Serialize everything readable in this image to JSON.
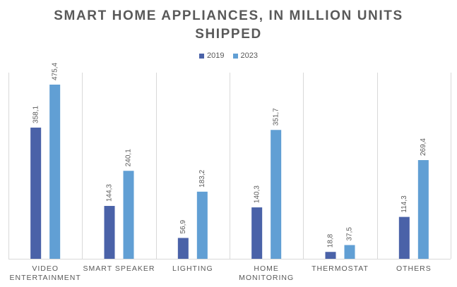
{
  "chart_data": {
    "type": "bar",
    "title_lines": [
      "SMART HOME APPLIANCES, IN MILLION UNITS",
      "SHIPPED"
    ],
    "categories": [
      [
        "VIDEO",
        "ENTERTAINMENT"
      ],
      [
        "SMART SPEAKER"
      ],
      [
        "LIGHTING"
      ],
      [
        "HOME",
        "MONITORING"
      ],
      [
        "THERMOSTAT"
      ],
      [
        "OTHERS"
      ]
    ],
    "series": [
      {
        "name": "2019",
        "color": "#4a62a8",
        "values": [
          358.1,
          144.3,
          56.9,
          140.3,
          18.8,
          114.3
        ],
        "labels": [
          "358,1",
          "144,3",
          "56,9",
          "140,3",
          "18,8",
          "114,3"
        ]
      },
      {
        "name": "2023",
        "color": "#619fd4",
        "values": [
          475.4,
          240.1,
          183.2,
          351.7,
          37.5,
          269.4
        ],
        "labels": [
          "475,4",
          "240,1",
          "183,2",
          "351,7",
          "37,5",
          "269,4"
        ]
      }
    ],
    "ylim": [
      0,
      475.4
    ],
    "grid": false,
    "legend_position": "top"
  }
}
